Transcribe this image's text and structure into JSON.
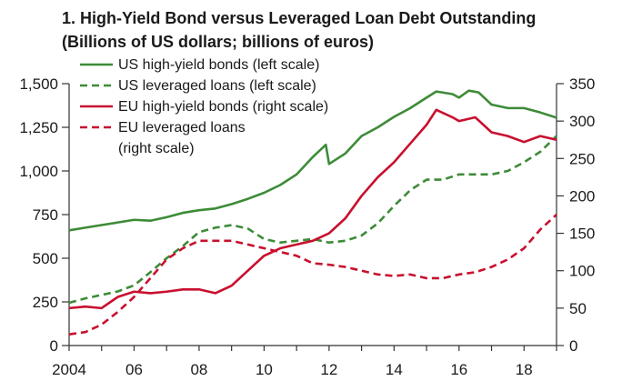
{
  "chart_data": {
    "type": "line",
    "title": "1. High-Yield Bond versus Leveraged Loan Debt Outstanding",
    "subtitle": "(Billions of US dollars; billions of euros)",
    "x_ticks": [
      "2004",
      "06",
      "08",
      "10",
      "12",
      "14",
      "16",
      "18"
    ],
    "x_tick_values": [
      2004,
      2006,
      2008,
      2010,
      2012,
      2014,
      2016,
      2018
    ],
    "xlim": [
      2004,
      2019
    ],
    "y_left": {
      "ylim": [
        0,
        1500
      ],
      "ticks": [
        0,
        250,
        500,
        750,
        1000,
        1250,
        1500
      ],
      "tick_labels": [
        "0",
        "250",
        "500",
        "750",
        "1,000",
        "1,250",
        "1,500"
      ]
    },
    "y_right": {
      "ylim": [
        0,
        350
      ],
      "ticks": [
        0,
        50,
        100,
        150,
        200,
        250,
        300,
        350
      ],
      "tick_labels": [
        "0",
        "50",
        "100",
        "150",
        "200",
        "250",
        "300",
        "350"
      ]
    },
    "grid": false,
    "legend_position": "top-left",
    "series": [
      {
        "name": "US high-yield bonds (left scale)",
        "axis": "left",
        "color": "#3d8b37",
        "dash": "solid",
        "points": [
          [
            2004.0,
            660
          ],
          [
            2004.5,
            675
          ],
          [
            2005.0,
            690
          ],
          [
            2005.5,
            705
          ],
          [
            2006.0,
            720
          ],
          [
            2006.5,
            715
          ],
          [
            2007.0,
            735
          ],
          [
            2007.5,
            760
          ],
          [
            2008.0,
            775
          ],
          [
            2008.5,
            785
          ],
          [
            2009.0,
            810
          ],
          [
            2009.5,
            840
          ],
          [
            2010.0,
            875
          ],
          [
            2010.5,
            920
          ],
          [
            2011.0,
            980
          ],
          [
            2011.5,
            1080
          ],
          [
            2011.9,
            1150
          ],
          [
            2012.0,
            1040
          ],
          [
            2012.5,
            1100
          ],
          [
            2013.0,
            1200
          ],
          [
            2013.5,
            1250
          ],
          [
            2014.0,
            1310
          ],
          [
            2014.5,
            1360
          ],
          [
            2015.0,
            1420
          ],
          [
            2015.3,
            1455
          ],
          [
            2015.8,
            1440
          ],
          [
            2016.0,
            1420
          ],
          [
            2016.3,
            1460
          ],
          [
            2016.6,
            1450
          ],
          [
            2017.0,
            1380
          ],
          [
            2017.5,
            1360
          ],
          [
            2018.0,
            1360
          ],
          [
            2018.5,
            1335
          ],
          [
            2019.0,
            1305
          ]
        ]
      },
      {
        "name": "US leveraged loans (left scale)",
        "axis": "left",
        "color": "#3d8b37",
        "dash": "dashed",
        "points": [
          [
            2004.0,
            245
          ],
          [
            2004.5,
            270
          ],
          [
            2005.0,
            290
          ],
          [
            2005.5,
            310
          ],
          [
            2006.0,
            345
          ],
          [
            2006.5,
            420
          ],
          [
            2007.0,
            500
          ],
          [
            2007.5,
            570
          ],
          [
            2008.0,
            650
          ],
          [
            2008.5,
            675
          ],
          [
            2009.0,
            690
          ],
          [
            2009.5,
            670
          ],
          [
            2010.0,
            610
          ],
          [
            2010.5,
            590
          ],
          [
            2011.0,
            600
          ],
          [
            2011.5,
            610
          ],
          [
            2012.0,
            590
          ],
          [
            2012.5,
            600
          ],
          [
            2013.0,
            630
          ],
          [
            2013.5,
            700
          ],
          [
            2014.0,
            800
          ],
          [
            2014.5,
            890
          ],
          [
            2015.0,
            950
          ],
          [
            2015.5,
            950
          ],
          [
            2016.0,
            980
          ],
          [
            2016.5,
            980
          ],
          [
            2017.0,
            980
          ],
          [
            2017.5,
            1000
          ],
          [
            2018.0,
            1050
          ],
          [
            2018.5,
            1110
          ],
          [
            2019.0,
            1200
          ]
        ]
      },
      {
        "name": "EU high-yield bonds (right scale)",
        "axis": "right",
        "color": "#c8102e",
        "dash": "solid",
        "points": [
          [
            2004.0,
            50
          ],
          [
            2004.5,
            52
          ],
          [
            2005.0,
            50
          ],
          [
            2005.5,
            65
          ],
          [
            2006.0,
            72
          ],
          [
            2006.5,
            70
          ],
          [
            2007.0,
            72
          ],
          [
            2007.5,
            75
          ],
          [
            2008.0,
            75
          ],
          [
            2008.5,
            70
          ],
          [
            2009.0,
            80
          ],
          [
            2009.5,
            100
          ],
          [
            2010.0,
            120
          ],
          [
            2010.5,
            130
          ],
          [
            2011.0,
            135
          ],
          [
            2011.5,
            140
          ],
          [
            2012.0,
            150
          ],
          [
            2012.5,
            170
          ],
          [
            2013.0,
            200
          ],
          [
            2013.5,
            225
          ],
          [
            2014.0,
            245
          ],
          [
            2014.5,
            270
          ],
          [
            2015.0,
            295
          ],
          [
            2015.3,
            315
          ],
          [
            2015.8,
            305
          ],
          [
            2016.0,
            300
          ],
          [
            2016.5,
            305
          ],
          [
            2017.0,
            285
          ],
          [
            2017.5,
            280
          ],
          [
            2018.0,
            272
          ],
          [
            2018.5,
            280
          ],
          [
            2019.0,
            275
          ]
        ]
      },
      {
        "name": "EU leveraged loans",
        "axis": "right",
        "color": "#c8102e",
        "dash": "dashed",
        "points": [
          [
            2004.0,
            15
          ],
          [
            2004.5,
            18
          ],
          [
            2005.0,
            28
          ],
          [
            2005.5,
            45
          ],
          [
            2006.0,
            65
          ],
          [
            2006.5,
            90
          ],
          [
            2007.0,
            115
          ],
          [
            2007.5,
            130
          ],
          [
            2008.0,
            140
          ],
          [
            2008.5,
            140
          ],
          [
            2009.0,
            140
          ],
          [
            2009.5,
            135
          ],
          [
            2010.0,
            130
          ],
          [
            2010.5,
            125
          ],
          [
            2011.0,
            120
          ],
          [
            2011.5,
            110
          ],
          [
            2012.0,
            108
          ],
          [
            2012.5,
            105
          ],
          [
            2013.0,
            100
          ],
          [
            2013.5,
            95
          ],
          [
            2014.0,
            93
          ],
          [
            2014.5,
            95
          ],
          [
            2015.0,
            90
          ],
          [
            2015.5,
            90
          ],
          [
            2016.0,
            95
          ],
          [
            2016.5,
            98
          ],
          [
            2017.0,
            105
          ],
          [
            2017.5,
            115
          ],
          [
            2018.0,
            130
          ],
          [
            2018.5,
            155
          ],
          [
            2019.0,
            175
          ]
        ]
      }
    ],
    "legend": [
      {
        "label": "US high-yield bonds (left scale)",
        "color": "#3d8b37",
        "dash": "solid"
      },
      {
        "label": "US leveraged loans (left scale)",
        "color": "#3d8b37",
        "dash": "dashed"
      },
      {
        "label": "EU high-yield bonds (right scale)",
        "color": "#c8102e",
        "dash": "solid"
      },
      {
        "label": "EU leveraged loans",
        "label2": "(right scale)",
        "color": "#c8102e",
        "dash": "dashed"
      }
    ]
  }
}
